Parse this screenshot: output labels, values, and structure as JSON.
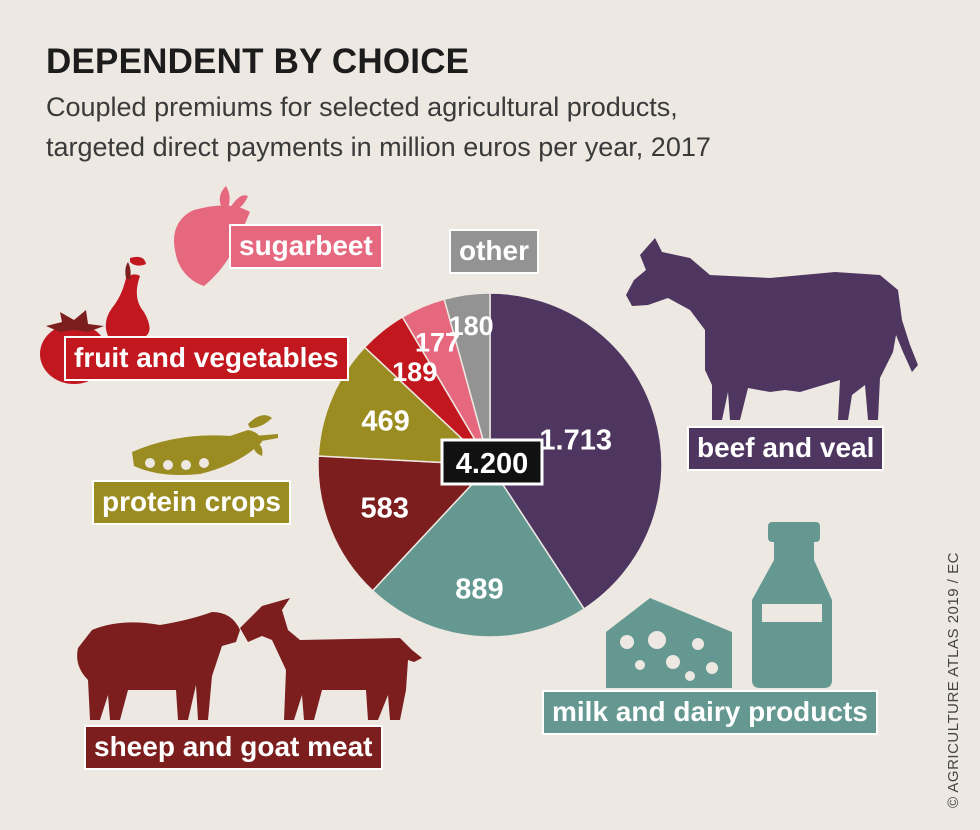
{
  "title": "DEPENDENT BY CHOICE",
  "subtitle_line1": "Coupled premiums for selected agricultural products,",
  "subtitle_line2": "targeted direct payments in million euros per year, 2017",
  "credit": "© AGRICULTURE ATLAS 2019 / EC",
  "total_label": "4.200",
  "colors": {
    "beef": "#4f3660",
    "milk": "#649891",
    "sheep": "#7c1e1e",
    "protein": "#9b8c22",
    "fruit": "#c3171f",
    "sugarbeet": "#e6687e",
    "other": "#939393"
  },
  "icons": [
    "cow-icon",
    "cheese-icon",
    "milk-bottle-icon",
    "sheep-icon",
    "goat-icon",
    "pea-pod-icon",
    "pear-icon",
    "tomato-icon",
    "sugarbeet-icon"
  ],
  "chart_data": {
    "type": "pie",
    "title": "DEPENDENT BY CHOICE",
    "subtitle": "Coupled premiums for selected agricultural products, targeted direct payments in million euros per year, 2017",
    "total": 4200,
    "slices": [
      {
        "key": "beef",
        "label": "beef and veal",
        "value": 1713,
        "value_label": "1.713"
      },
      {
        "key": "milk",
        "label": "milk and dairy products",
        "value": 889,
        "value_label": "889"
      },
      {
        "key": "sheep",
        "label": "sheep and goat meat",
        "value": 583,
        "value_label": "583"
      },
      {
        "key": "protein",
        "label": "protein crops",
        "value": 469,
        "value_label": "469"
      },
      {
        "key": "fruit",
        "label": "fruit and vegetables",
        "value": 189,
        "value_label": "189"
      },
      {
        "key": "sugarbeet",
        "label": "sugarbeet",
        "value": 177,
        "value_label": "177"
      },
      {
        "key": "other",
        "label": "other",
        "value": 180,
        "value_label": "180"
      }
    ]
  }
}
